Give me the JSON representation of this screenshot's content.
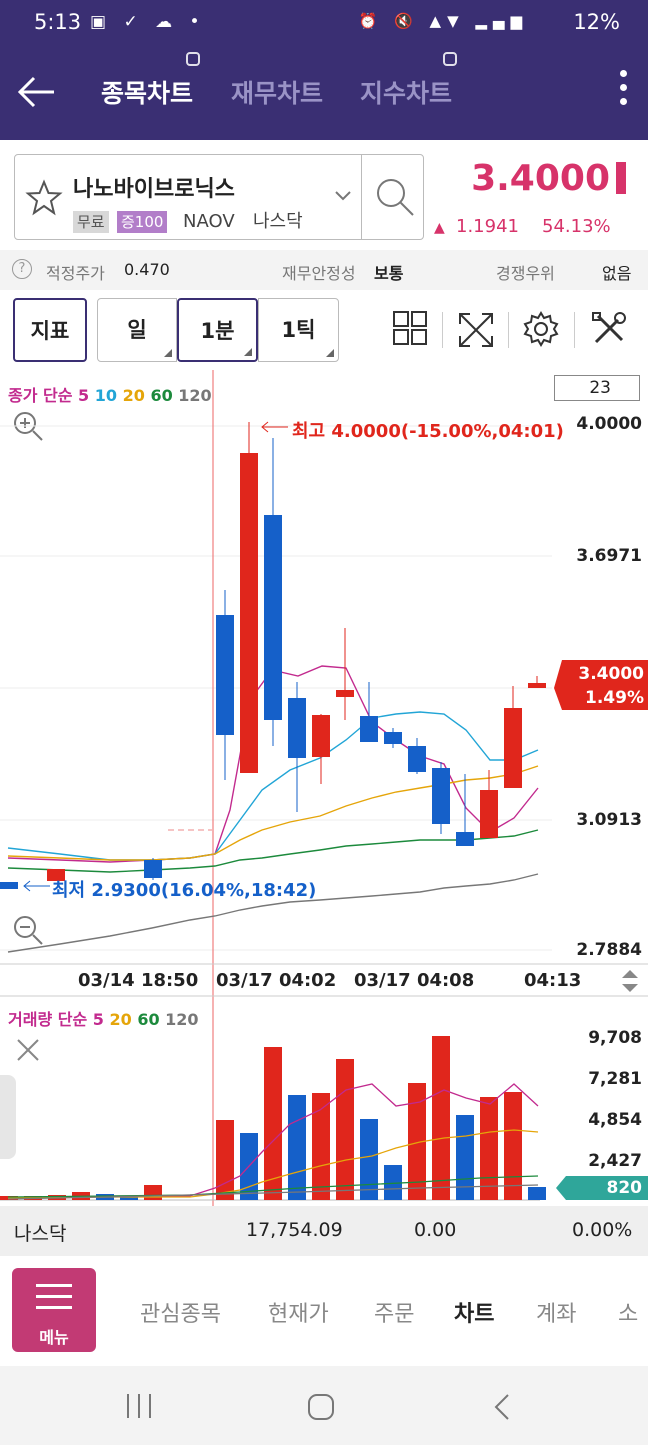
{
  "status_bar": {
    "time": "5:13",
    "battery": "12%"
  },
  "header": {
    "tabs": [
      {
        "label": "종목차트",
        "active": true
      },
      {
        "label": "재무차트",
        "active": false
      },
      {
        "label": "지수차트",
        "active": false
      }
    ]
  },
  "stock": {
    "name": "나노바이브로닉스",
    "tags": [
      "무료",
      "증100",
      "NAOV",
      "나스닥"
    ],
    "price": "3.4000",
    "change": "1.1941",
    "change_pct": "54.13%"
  },
  "info": {
    "fair_price_label": "적정주가",
    "fair_price_value": "0.470",
    "stability_label": "재무안정성",
    "stability_value": "보통",
    "competition_label": "경쟁우위",
    "competition_value": "없음"
  },
  "toolbar": {
    "indicator_label": "지표",
    "day_label": "일",
    "minute_label": "1분",
    "tick_label": "1틱"
  },
  "price_chart": {
    "legend_prefix": "종가 단순",
    "ma_labels": [
      "5",
      "10",
      "20",
      "60",
      "120"
    ],
    "ma_colors": [
      "#22a5d6",
      "#e5a50a",
      "#1c8a3c",
      "#777777"
    ],
    "count": "23",
    "y_labels": [
      "4.0000",
      "3.6971",
      "3.0913",
      "2.7884"
    ],
    "high_label": "최고 4.0000(-15.00%,04:01)",
    "low_label": "최저 2.9300(16.04%,18:42)",
    "current_price": "3.4000",
    "current_pct": "1.49%",
    "x_labels": [
      "03/14 18:50",
      "03/17 04:02",
      "03/17 04:08",
      "04:13"
    ]
  },
  "volume_chart": {
    "legend_prefix": "거래량 단순",
    "ma_labels": [
      "5",
      "20",
      "60",
      "120"
    ],
    "y_labels": [
      "9,708",
      "7,281",
      "4,854",
      "2,427"
    ],
    "current": "820"
  },
  "index_row": {
    "name": "나스닥",
    "value": "17,754.09",
    "change": "0.00",
    "pct": "0.00%"
  },
  "nav": {
    "menu_label": "메뉴",
    "items": [
      {
        "label": "관심종목",
        "active": false
      },
      {
        "label": "현재가",
        "active": false
      },
      {
        "label": "주문",
        "active": false
      },
      {
        "label": "차트",
        "active": true
      },
      {
        "label": "계좌",
        "active": false
      },
      {
        "label": "소",
        "active": false
      }
    ]
  }
}
